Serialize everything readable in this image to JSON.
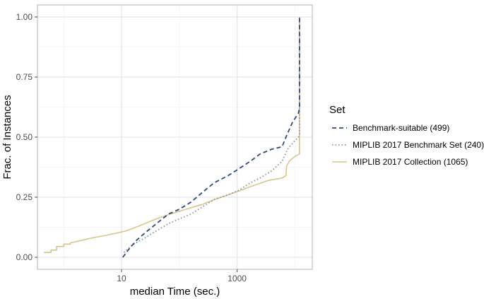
{
  "chart_data": {
    "type": "line",
    "title": "",
    "xlabel": "median Time (sec.)",
    "ylabel": "Frac. of Instances",
    "x_scale": "log10",
    "xlim": [
      0.35,
      20000
    ],
    "ylim": [
      -0.05,
      1.05
    ],
    "x_ticks": [
      10,
      1000
    ],
    "x_tick_labels": [
      "10",
      "1000"
    ],
    "y_ticks": [
      0,
      0.25,
      0.5,
      0.75,
      1
    ],
    "y_tick_labels": [
      "0.00",
      "0.25",
      "0.50",
      "0.75",
      "1.00"
    ],
    "grid": true,
    "legend": {
      "title": "Set",
      "position": "right"
    },
    "series": [
      {
        "name": "Benchmark-suitable (499)",
        "color": "#2e4a7d",
        "dash": "dashed",
        "points": [
          [
            10.5,
            0.0
          ],
          [
            13,
            0.03
          ],
          [
            18,
            0.07
          ],
          [
            25,
            0.1
          ],
          [
            40,
            0.14
          ],
          [
            65,
            0.18
          ],
          [
            100,
            0.2
          ],
          [
            160,
            0.23
          ],
          [
            250,
            0.27
          ],
          [
            400,
            0.31
          ],
          [
            700,
            0.34
          ],
          [
            1100,
            0.37
          ],
          [
            1700,
            0.4
          ],
          [
            2500,
            0.43
          ],
          [
            4000,
            0.45
          ],
          [
            6000,
            0.46
          ],
          [
            7000,
            0.5
          ],
          [
            9000,
            0.56
          ],
          [
            11500,
            0.6
          ],
          [
            12000,
            0.62
          ],
          [
            12000,
            1.0
          ]
        ]
      },
      {
        "name": "MIPLIB 2017 Benchmark Set (240)",
        "color": "#8a8f99",
        "dash": "dotted",
        "points": [
          [
            11,
            0.02
          ],
          [
            15,
            0.05
          ],
          [
            25,
            0.08
          ],
          [
            40,
            0.11
          ],
          [
            65,
            0.14
          ],
          [
            100,
            0.16
          ],
          [
            160,
            0.18
          ],
          [
            250,
            0.21
          ],
          [
            400,
            0.24
          ],
          [
            700,
            0.26
          ],
          [
            1100,
            0.28
          ],
          [
            1700,
            0.31
          ],
          [
            2500,
            0.33
          ],
          [
            4000,
            0.36
          ],
          [
            6000,
            0.4
          ],
          [
            7500,
            0.45
          ],
          [
            9500,
            0.48
          ],
          [
            11500,
            0.5
          ],
          [
            12000,
            0.51
          ],
          [
            12000,
            1.0
          ]
        ]
      },
      {
        "name": "MIPLIB 2017 Collection (1065)",
        "color": "#d9c58a",
        "dash": "solid",
        "points": [
          [
            0.45,
            0.02
          ],
          [
            0.6,
            0.02
          ],
          [
            0.6,
            0.03
          ],
          [
            0.75,
            0.03
          ],
          [
            0.75,
            0.045
          ],
          [
            1.0,
            0.045
          ],
          [
            1.0,
            0.055
          ],
          [
            1.3,
            0.055
          ],
          [
            1.3,
            0.06
          ],
          [
            2,
            0.07
          ],
          [
            3,
            0.08
          ],
          [
            5,
            0.09
          ],
          [
            8,
            0.1
          ],
          [
            12,
            0.11
          ],
          [
            20,
            0.13
          ],
          [
            40,
            0.16
          ],
          [
            70,
            0.18
          ],
          [
            130,
            0.2
          ],
          [
            250,
            0.22
          ],
          [
            400,
            0.24
          ],
          [
            700,
            0.26
          ],
          [
            1200,
            0.28
          ],
          [
            2000,
            0.3
          ],
          [
            3500,
            0.32
          ],
          [
            6000,
            0.33
          ],
          [
            7000,
            0.34
          ],
          [
            7200,
            0.38
          ],
          [
            8000,
            0.4
          ],
          [
            10000,
            0.42
          ],
          [
            12000,
            0.43
          ],
          [
            12000,
            1.0
          ]
        ]
      }
    ]
  }
}
